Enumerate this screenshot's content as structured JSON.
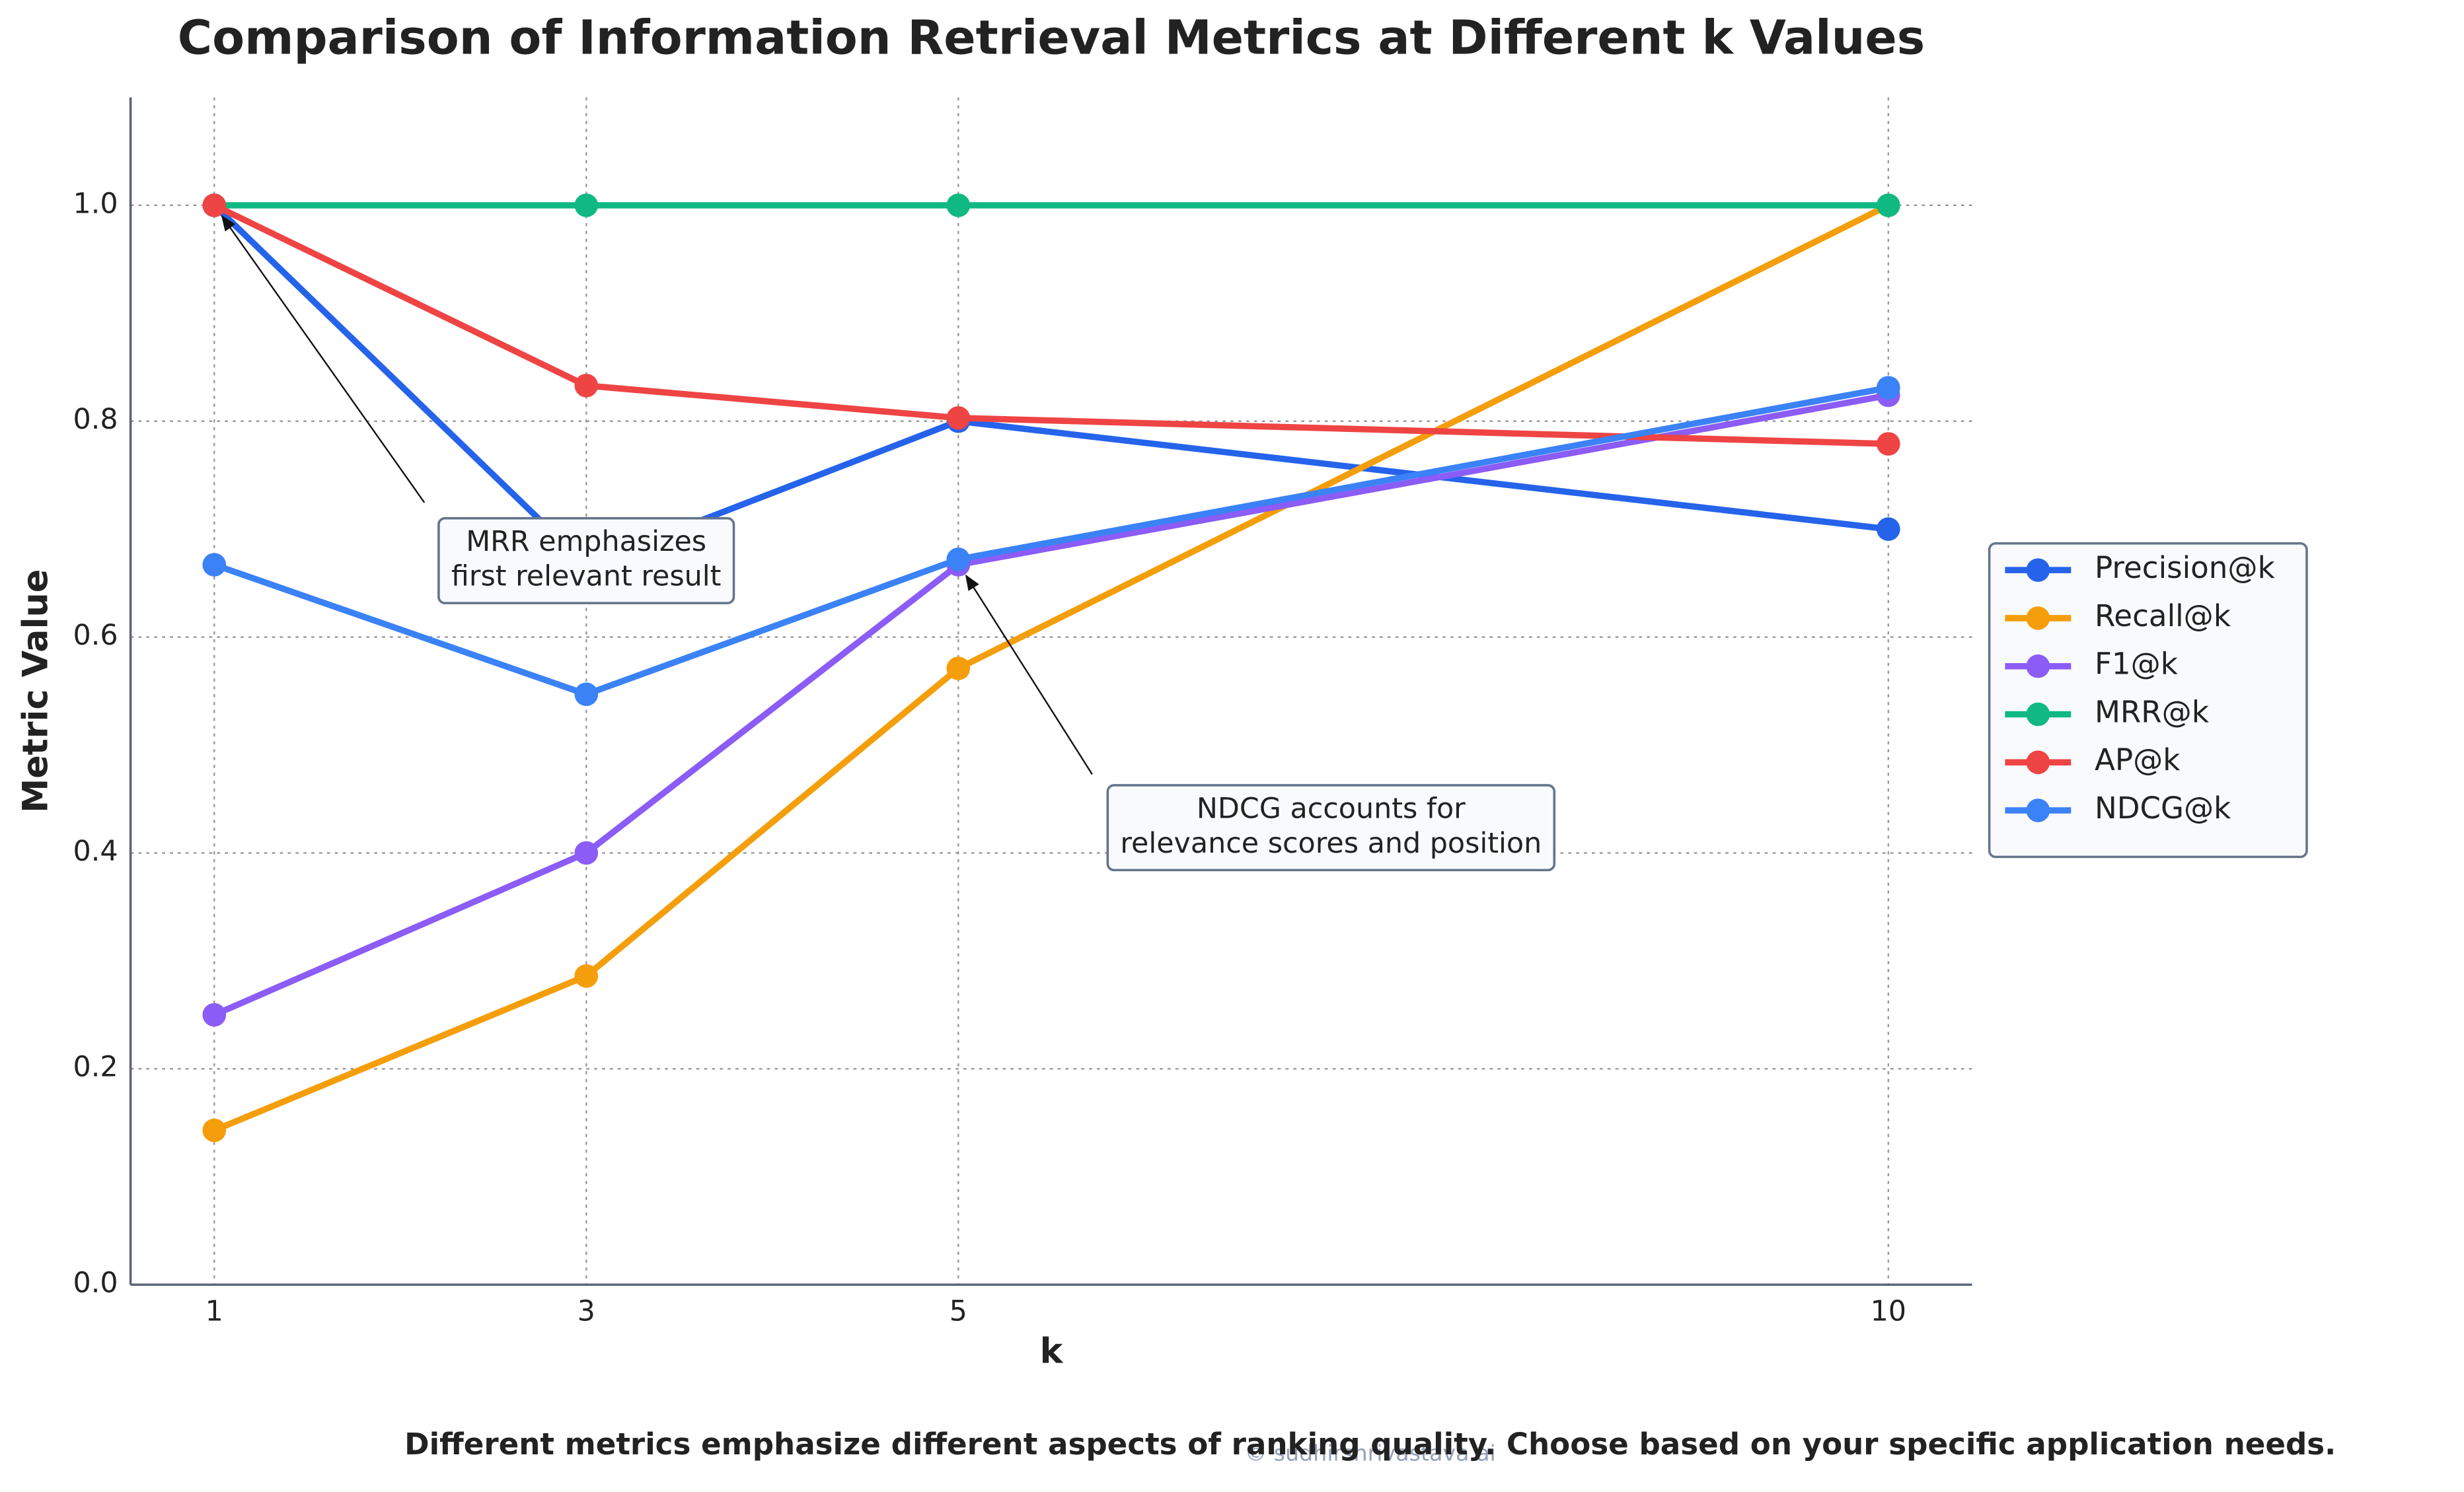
{
  "chart_data": {
    "type": "line",
    "title": "Comparison of Information Retrieval Metrics at Different k Values",
    "xlabel": "k",
    "ylabel": "Metric Value",
    "x": [
      1,
      3,
      5,
      10
    ],
    "series": [
      {
        "name": "Precision@k",
        "color": "#2563eb",
        "values": [
          1.0,
          0.667,
          0.8,
          0.7
        ]
      },
      {
        "name": "Recall@k",
        "color": "#f59e0b",
        "values": [
          0.143,
          0.286,
          0.571,
          1.0
        ]
      },
      {
        "name": "F1@k",
        "color": "#8b5cf6",
        "values": [
          0.25,
          0.4,
          0.667,
          0.824
        ]
      },
      {
        "name": "MRR@k",
        "color": "#10b981",
        "values": [
          1.0,
          1.0,
          1.0,
          1.0
        ]
      },
      {
        "name": "AP@k",
        "color": "#ef4444",
        "values": [
          1.0,
          0.833,
          0.803,
          0.779
        ]
      },
      {
        "name": "NDCG@k",
        "color": "#3b82f6",
        "values": [
          0.667,
          0.547,
          0.672,
          0.831
        ]
      }
    ],
    "xlim": [
      0.55,
      10.45
    ],
    "xticks": [
      1,
      3,
      5,
      10
    ],
    "ylim": [
      0,
      1.1
    ],
    "yticks": [
      {
        "value": 0,
        "label": "0.0"
      },
      0.2,
      0.4,
      0.6,
      0.8,
      {
        "value": 1,
        "label": "1.0"
      }
    ],
    "grid": true,
    "legend": "right",
    "annotations": [
      {
        "lines": [
          "MRR emphasizes",
          "first relevant result"
        ],
        "xy": [
          1,
          1.0
        ]
      },
      {
        "lines": [
          "NDCG accounts for",
          "relevance scores and position"
        ],
        "xy": [
          5,
          0.667
        ]
      }
    ],
    "footnote": "Different metrics emphasize different aspects of ranking quality. Choose based on your specific application needs.",
    "watermark": "© sudhirshrivastava.ai"
  }
}
